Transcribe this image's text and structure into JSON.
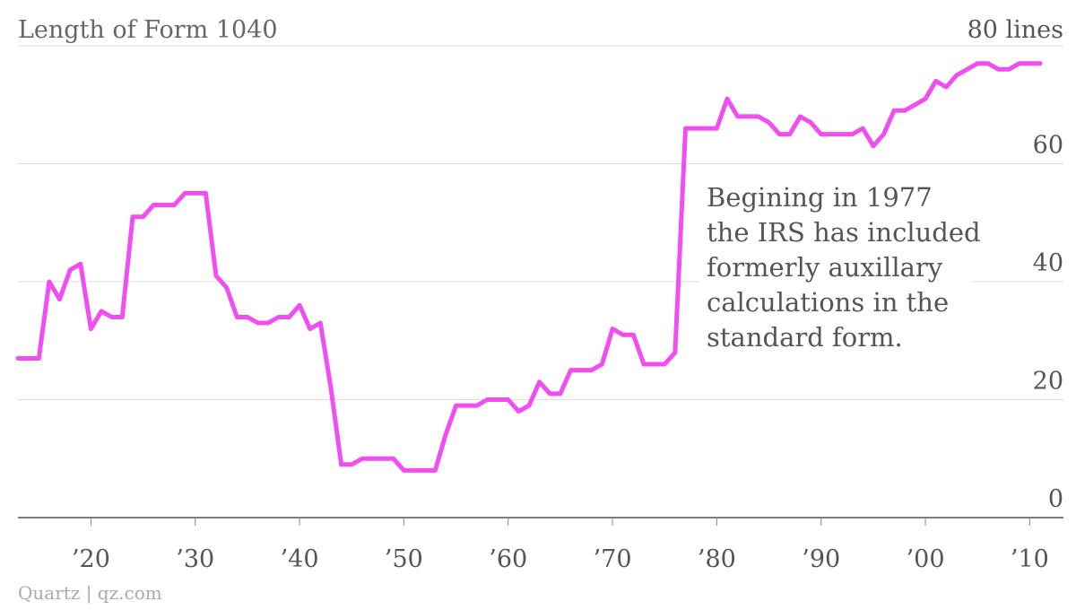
{
  "chart_data": {
    "type": "line",
    "title": "Length of Form 1040",
    "unit_label": "80 lines",
    "ylim": [
      0,
      80
    ],
    "y_ticks": [
      {
        "value": 0,
        "label": "0"
      },
      {
        "value": 20,
        "label": "20"
      },
      {
        "value": 40,
        "label": "40"
      },
      {
        "value": 60,
        "label": "60"
      }
    ],
    "xlim": [
      1913,
      2011
    ],
    "x_ticks": [
      {
        "value": 1920,
        "label": "’20"
      },
      {
        "value": 1930,
        "label": "’30"
      },
      {
        "value": 1940,
        "label": "’40"
      },
      {
        "value": 1950,
        "label": "’50"
      },
      {
        "value": 1960,
        "label": "’60"
      },
      {
        "value": 1970,
        "label": "’70"
      },
      {
        "value": 1980,
        "label": "’80"
      },
      {
        "value": 1990,
        "label": "’90"
      },
      {
        "value": 2000,
        "label": "’00"
      },
      {
        "value": 2010,
        "label": "’10"
      }
    ],
    "grid": true,
    "line_color": "#f04ef0",
    "series": [
      {
        "x": [
          1913,
          1914,
          1915,
          1916,
          1917,
          1918,
          1919,
          1920,
          1921,
          1922,
          1923,
          1924,
          1925,
          1926,
          1927,
          1928,
          1929,
          1930,
          1931,
          1932,
          1933,
          1934,
          1935,
          1936,
          1937,
          1938,
          1939,
          1940,
          1941,
          1942,
          1943,
          1944,
          1945,
          1946,
          1947,
          1948,
          1949,
          1950,
          1951,
          1952,
          1953,
          1954,
          1955,
          1956,
          1957,
          1958,
          1959,
          1960,
          1961,
          1962,
          1963,
          1964,
          1965,
          1966,
          1967,
          1968,
          1969,
          1970,
          1971,
          1972,
          1973,
          1974,
          1975,
          1976,
          1977,
          1978,
          1979,
          1980,
          1981,
          1982,
          1983,
          1984,
          1985,
          1986,
          1987,
          1988,
          1989,
          1990,
          1991,
          1992,
          1993,
          1994,
          1995,
          1996,
          1997,
          1998,
          1999,
          2000,
          2001,
          2002,
          2003,
          2004,
          2005,
          2006,
          2007,
          2008,
          2009,
          2010,
          2011
        ],
        "values": [
          27,
          27,
          27,
          40,
          37,
          42,
          43,
          32,
          35,
          34,
          34,
          51,
          51,
          53,
          53,
          53,
          55,
          55,
          55,
          41,
          39,
          34,
          34,
          33,
          33,
          34,
          34,
          36,
          32,
          33,
          22,
          9,
          9,
          10,
          10,
          10,
          10,
          8,
          8,
          8,
          8,
          14,
          19,
          19,
          19,
          20,
          20,
          20,
          18,
          19,
          23,
          21,
          21,
          25,
          25,
          25,
          26,
          32,
          31,
          31,
          26,
          26,
          26,
          28,
          66,
          66,
          66,
          66,
          71,
          68,
          68,
          68,
          67,
          65,
          65,
          68,
          67,
          65,
          65,
          65,
          65,
          66,
          63,
          65,
          69,
          69,
          70,
          71,
          74,
          73,
          75,
          76,
          77,
          77,
          76,
          76,
          77,
          77,
          77
        ]
      }
    ],
    "annotation": {
      "lines": [
        "Begining in 1977",
        "the IRS has included",
        "formerly auxillary",
        "calculations in the",
        "standard form."
      ]
    },
    "source": "Quartz | qz.com"
  }
}
